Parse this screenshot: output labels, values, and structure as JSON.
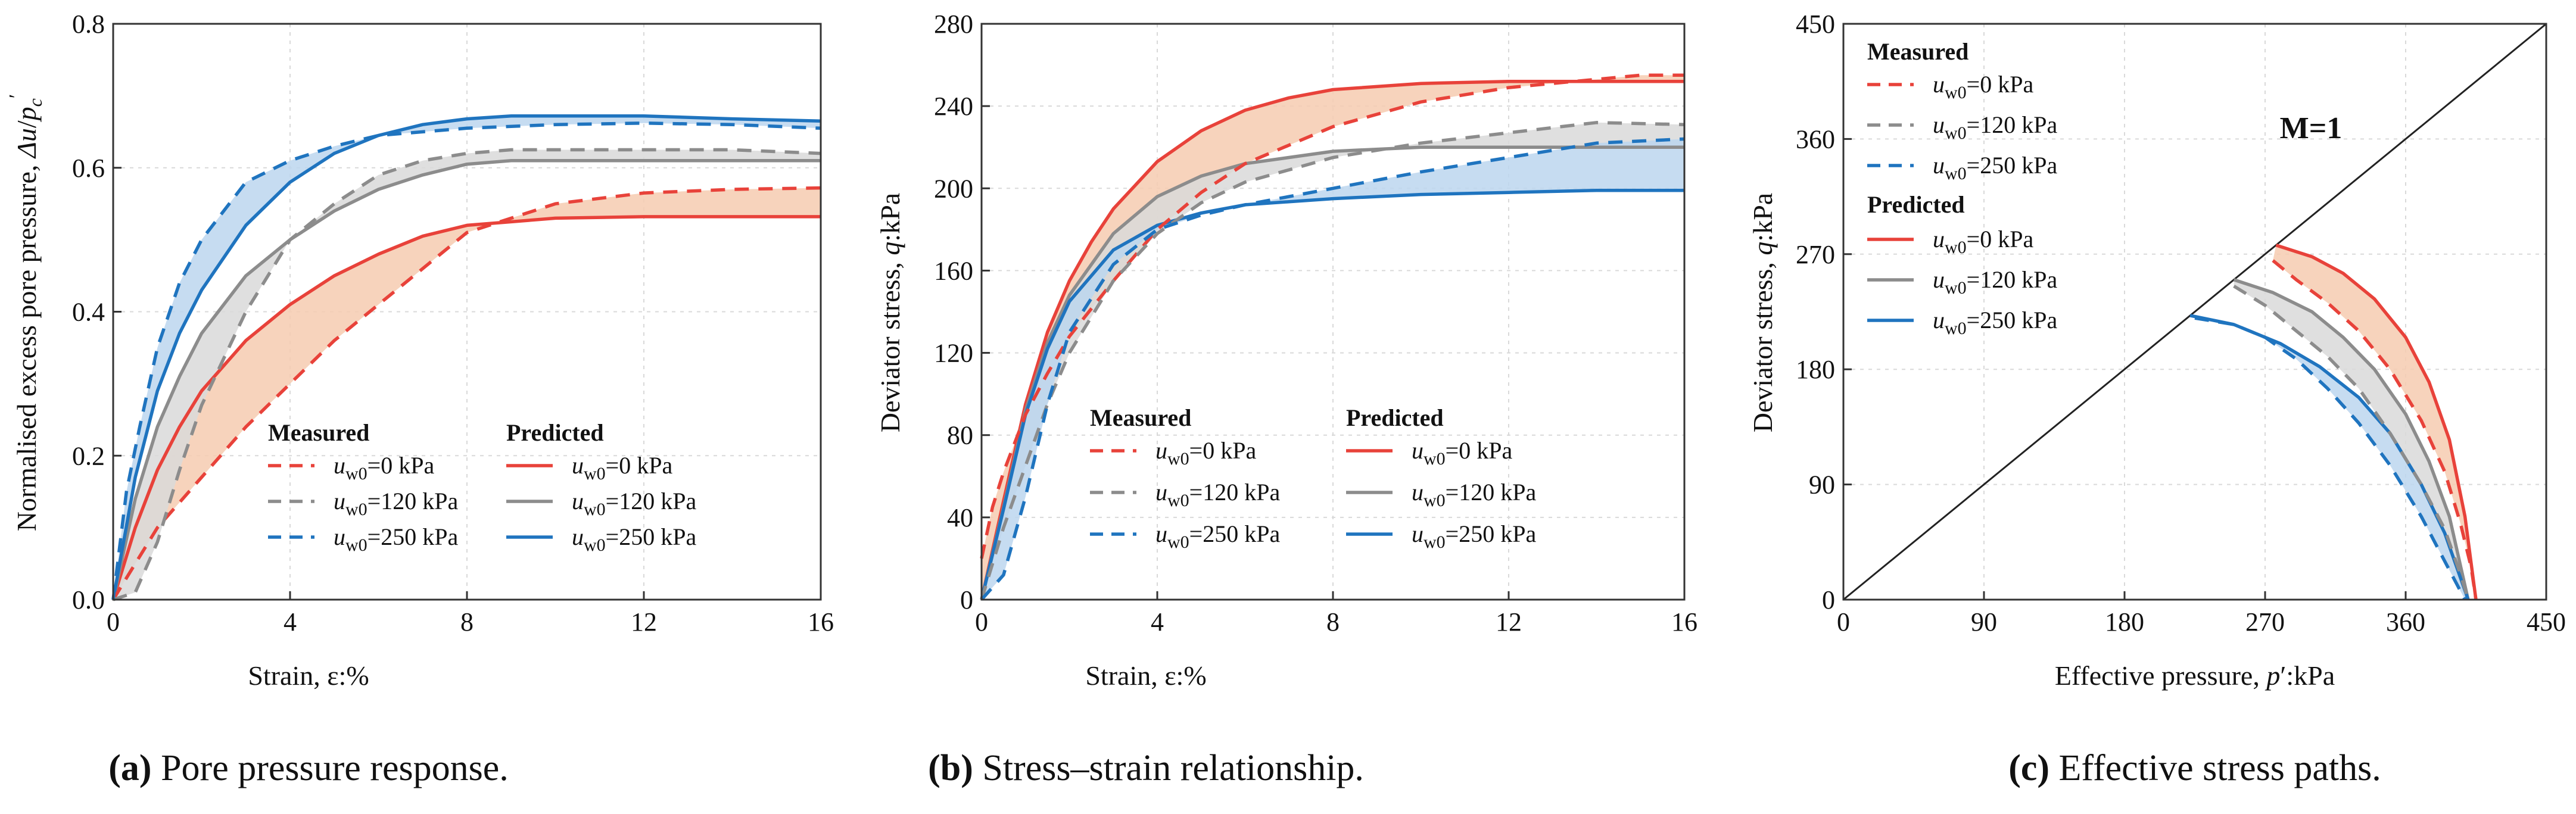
{
  "colors": {
    "red": "#e8423a",
    "gray": "#8c8c8c",
    "blue": "#1f74bf",
    "red_fill": "#f6cbb0",
    "gray_fill": "#d9d9d9",
    "blue_fill": "#bcd6ee"
  },
  "captions": [
    {
      "letter": "(a)",
      "text": " Pore pressure response."
    },
    {
      "letter": "(b)",
      "text": " Stress–strain relationship."
    },
    {
      "letter": "(c)",
      "text": " Effective stress paths."
    }
  ],
  "legend": {
    "measured": "Measured",
    "predicted": "Predicted",
    "labels": [
      "u_w0=0 kPa",
      "u_w0=120 kPa",
      "u_w0=250 kPa"
    ],
    "label_parts": {
      "u": "u",
      "sub": "w0",
      "values": [
        "=0 kPa",
        "=120 kPa",
        "=250 kPa"
      ]
    }
  },
  "chart_data": [
    {
      "type": "line",
      "panel": "a",
      "title": "Pore pressure response",
      "xlabel": "Strain, ε:%",
      "ylabel": "Normalised excess pore pressure, Δu/p'c",
      "xlim": [
        0,
        16
      ],
      "ylim": [
        0,
        0.8
      ],
      "xticks": [
        0,
        4,
        8,
        12,
        16
      ],
      "yticks": [
        0.0,
        0.2,
        0.4,
        0.6,
        0.8
      ],
      "ytick_labels": [
        "0.0",
        "0.2",
        "0.4",
        "0.6",
        "0.8"
      ],
      "grid": true,
      "series": [
        {
          "name": "Measured u_w0=0 kPa",
          "style": "dashed",
          "color": "red",
          "x": [
            0,
            0.5,
            1,
            2,
            3,
            4,
            5,
            6,
            7,
            8,
            10,
            12,
            14,
            16
          ],
          "y": [
            0,
            0.05,
            0.1,
            0.17,
            0.24,
            0.3,
            0.36,
            0.41,
            0.46,
            0.51,
            0.55,
            0.565,
            0.57,
            0.572
          ]
        },
        {
          "name": "Measured u_w0=120 kPa",
          "style": "dashed",
          "color": "gray",
          "x": [
            0,
            0.5,
            1,
            1.5,
            2,
            3,
            4,
            5,
            6,
            7,
            8,
            9,
            10,
            12,
            14,
            16
          ],
          "y": [
            0,
            0.01,
            0.08,
            0.18,
            0.27,
            0.4,
            0.5,
            0.55,
            0.59,
            0.61,
            0.62,
            0.625,
            0.625,
            0.625,
            0.625,
            0.62
          ]
        },
        {
          "name": "Measured u_w0=250 kPa",
          "style": "dashed",
          "color": "blue",
          "x": [
            0,
            0.3,
            0.6,
            1,
            1.5,
            2,
            3,
            4,
            5,
            6,
            8,
            10,
            12,
            14,
            16
          ],
          "y": [
            0,
            0.15,
            0.24,
            0.35,
            0.44,
            0.5,
            0.58,
            0.61,
            0.63,
            0.645,
            0.655,
            0.66,
            0.662,
            0.66,
            0.655
          ]
        },
        {
          "name": "Predicted u_w0=0 kPa",
          "style": "solid",
          "color": "red",
          "x": [
            0,
            0.5,
            1,
            1.5,
            2,
            3,
            4,
            5,
            6,
            7,
            8,
            10,
            12,
            14,
            16
          ],
          "y": [
            0,
            0.1,
            0.18,
            0.24,
            0.29,
            0.36,
            0.41,
            0.45,
            0.48,
            0.505,
            0.52,
            0.53,
            0.532,
            0.532,
            0.532
          ]
        },
        {
          "name": "Predicted u_w0=120 kPa",
          "style": "solid",
          "color": "gray",
          "x": [
            0,
            0.5,
            1,
            1.5,
            2,
            3,
            4,
            5,
            6,
            7,
            8,
            9,
            10,
            12,
            14,
            16
          ],
          "y": [
            0,
            0.14,
            0.24,
            0.31,
            0.37,
            0.45,
            0.5,
            0.54,
            0.57,
            0.59,
            0.605,
            0.61,
            0.61,
            0.61,
            0.61,
            0.61
          ]
        },
        {
          "name": "Predicted u_w0=250 kPa",
          "style": "solid",
          "color": "blue",
          "x": [
            0,
            0.5,
            1,
            1.5,
            2,
            3,
            4,
            5,
            6,
            7,
            8,
            9,
            10,
            12,
            14,
            16
          ],
          "y": [
            0,
            0.17,
            0.29,
            0.37,
            0.43,
            0.52,
            0.58,
            0.62,
            0.645,
            0.66,
            0.668,
            0.672,
            0.672,
            0.672,
            0.668,
            0.665
          ]
        }
      ],
      "bands": [
        [
          "Measured u_w0=0 kPa",
          "Predicted u_w0=0 kPa",
          "red"
        ],
        [
          "Measured u_w0=120 kPa",
          "Predicted u_w0=120 kPa",
          "gray"
        ],
        [
          "Measured u_w0=250 kPa",
          "Predicted u_w0=250 kPa",
          "blue"
        ]
      ]
    },
    {
      "type": "line",
      "panel": "b",
      "title": "Stress–strain relationship",
      "xlabel": "Strain, ε:%",
      "ylabel": "Deviator stress, q:kPa",
      "xlim": [
        0,
        16
      ],
      "ylim": [
        0,
        280
      ],
      "xticks": [
        0,
        4,
        8,
        12,
        16
      ],
      "yticks": [
        0,
        40,
        80,
        120,
        160,
        200,
        240,
        280
      ],
      "ytick_labels": [
        "0",
        "40",
        "80",
        "120",
        "160",
        "200",
        "240",
        "280"
      ],
      "grid": true,
      "series": [
        {
          "name": "Measured u_w0=0 kPa",
          "style": "dashed",
          "color": "red",
          "x": [
            0,
            0.25,
            0.5,
            1,
            1.5,
            2,
            3,
            4,
            5,
            6,
            8,
            10,
            12,
            14,
            15,
            16
          ],
          "y": [
            20,
            45,
            62,
            90,
            110,
            128,
            155,
            180,
            198,
            212,
            230,
            242,
            249,
            253,
            255,
            255
          ]
        },
        {
          "name": "Measured u_w0=120 kPa",
          "style": "dashed",
          "color": "gray",
          "x": [
            0,
            0.5,
            1,
            1.5,
            2,
            3,
            4,
            5,
            6,
            8,
            10,
            12,
            14,
            16
          ],
          "y": [
            0,
            35,
            65,
            95,
            120,
            155,
            178,
            193,
            203,
            215,
            222,
            227,
            232,
            231
          ]
        },
        {
          "name": "Measured u_w0=250 kPa",
          "style": "dashed",
          "color": "blue",
          "x": [
            0,
            0.5,
            1,
            1.5,
            2,
            3,
            4,
            5,
            6,
            8,
            10,
            12,
            14,
            16
          ],
          "y": [
            0,
            12,
            50,
            95,
            130,
            163,
            180,
            187,
            192,
            200,
            208,
            215,
            222,
            224
          ]
        },
        {
          "name": "Predicted u_w0=0 kPa",
          "style": "solid",
          "color": "red",
          "x": [
            0,
            0.5,
            1,
            1.5,
            2,
            2.5,
            3,
            4,
            5,
            6,
            7,
            8,
            10,
            12,
            14,
            16
          ],
          "y": [
            0,
            48,
            95,
            130,
            155,
            174,
            190,
            213,
            228,
            238,
            244,
            248,
            251,
            252,
            252,
            252
          ]
        },
        {
          "name": "Predicted u_w0=120 kPa",
          "style": "solid",
          "color": "gray",
          "x": [
            0,
            0.5,
            1,
            1.5,
            2,
            3,
            4,
            5,
            6,
            8,
            10,
            12,
            14,
            16
          ],
          "y": [
            0,
            45,
            92,
            125,
            148,
            178,
            196,
            206,
            212,
            218,
            220,
            220,
            220,
            220
          ]
        },
        {
          "name": "Predicted u_w0=250 kPa",
          "style": "solid",
          "color": "blue",
          "x": [
            0,
            0.5,
            1,
            1.5,
            2,
            3,
            4,
            5,
            6,
            8,
            10,
            12,
            14,
            16
          ],
          "y": [
            0,
            44,
            90,
            122,
            145,
            170,
            182,
            188,
            192,
            195,
            197,
            198,
            199,
            199
          ]
        }
      ],
      "bands": [
        [
          "Measured u_w0=0 kPa",
          "Predicted u_w0=0 kPa",
          "red"
        ],
        [
          "Measured u_w0=120 kPa",
          "Predicted u_w0=120 kPa",
          "gray"
        ],
        [
          "Measured u_w0=250 kPa",
          "Predicted u_w0=250 kPa",
          "blue"
        ]
      ]
    },
    {
      "type": "line",
      "panel": "c",
      "title": "Effective stress paths",
      "xlabel": "Effective pressure, p':kPa",
      "ylabel": "Deviator stress, q:kPa",
      "xlim": [
        0,
        450
      ],
      "ylim": [
        0,
        450
      ],
      "xticks": [
        0,
        90,
        180,
        270,
        360,
        450
      ],
      "yticks": [
        0,
        90,
        180,
        270,
        360,
        450
      ],
      "ytick_labels": [
        "0",
        "90",
        "180",
        "270",
        "360",
        "450"
      ],
      "grid": true,
      "annotation": "M=1",
      "critical_state_line": {
        "x": [
          0,
          450
        ],
        "y": [
          0,
          450
        ]
      },
      "series": [
        {
          "name": "Measured u_w0=0 kPa",
          "style": "dashed",
          "color": "red",
          "x": [
            275,
            290,
            310,
            330,
            350,
            370,
            385,
            395,
            402,
            405
          ],
          "y": [
            265,
            250,
            232,
            210,
            180,
            140,
            100,
            60,
            25,
            0
          ]
        },
        {
          "name": "Measured u_w0=120 kPa",
          "style": "dashed",
          "color": "gray",
          "x": [
            250,
            270,
            290,
            310,
            330,
            350,
            370,
            385,
            395,
            400
          ],
          "y": [
            245,
            230,
            210,
            190,
            165,
            130,
            90,
            55,
            20,
            0
          ]
        },
        {
          "name": "Measured u_w0=250 kPa",
          "style": "dashed",
          "color": "blue",
          "x": [
            225,
            250,
            270,
            290,
            310,
            330,
            350,
            370,
            385,
            398
          ],
          "y": [
            220,
            215,
            205,
            188,
            165,
            138,
            105,
            65,
            30,
            0
          ]
        },
        {
          "name": "Predicted u_w0=0 kPa",
          "style": "solid",
          "color": "red",
          "x": [
            277,
            300,
            320,
            340,
            360,
            375,
            388,
            398,
            405
          ],
          "y": [
            277,
            268,
            255,
            235,
            205,
            170,
            125,
            65,
            0
          ]
        },
        {
          "name": "Predicted u_w0=120 kPa",
          "style": "solid",
          "color": "gray",
          "x": [
            250,
            275,
            300,
            320,
            340,
            360,
            375,
            388,
            400
          ],
          "y": [
            250,
            240,
            225,
            205,
            180,
            145,
            108,
            65,
            0
          ]
        },
        {
          "name": "Predicted u_w0=250 kPa",
          "style": "solid",
          "color": "blue",
          "x": [
            222,
            250,
            280,
            305,
            330,
            350,
            370,
            385,
            400
          ],
          "y": [
            222,
            215,
            200,
            182,
            158,
            130,
            90,
            52,
            0
          ]
        }
      ],
      "bands": [
        [
          "Measured u_w0=0 kPa",
          "Predicted u_w0=0 kPa",
          "red"
        ],
        [
          "Measured u_w0=120 kPa",
          "Predicted u_w0=120 kPa",
          "gray"
        ],
        [
          "Measured u_w0=250 kPa",
          "Predicted u_w0=250 kPa",
          "blue"
        ]
      ]
    }
  ]
}
